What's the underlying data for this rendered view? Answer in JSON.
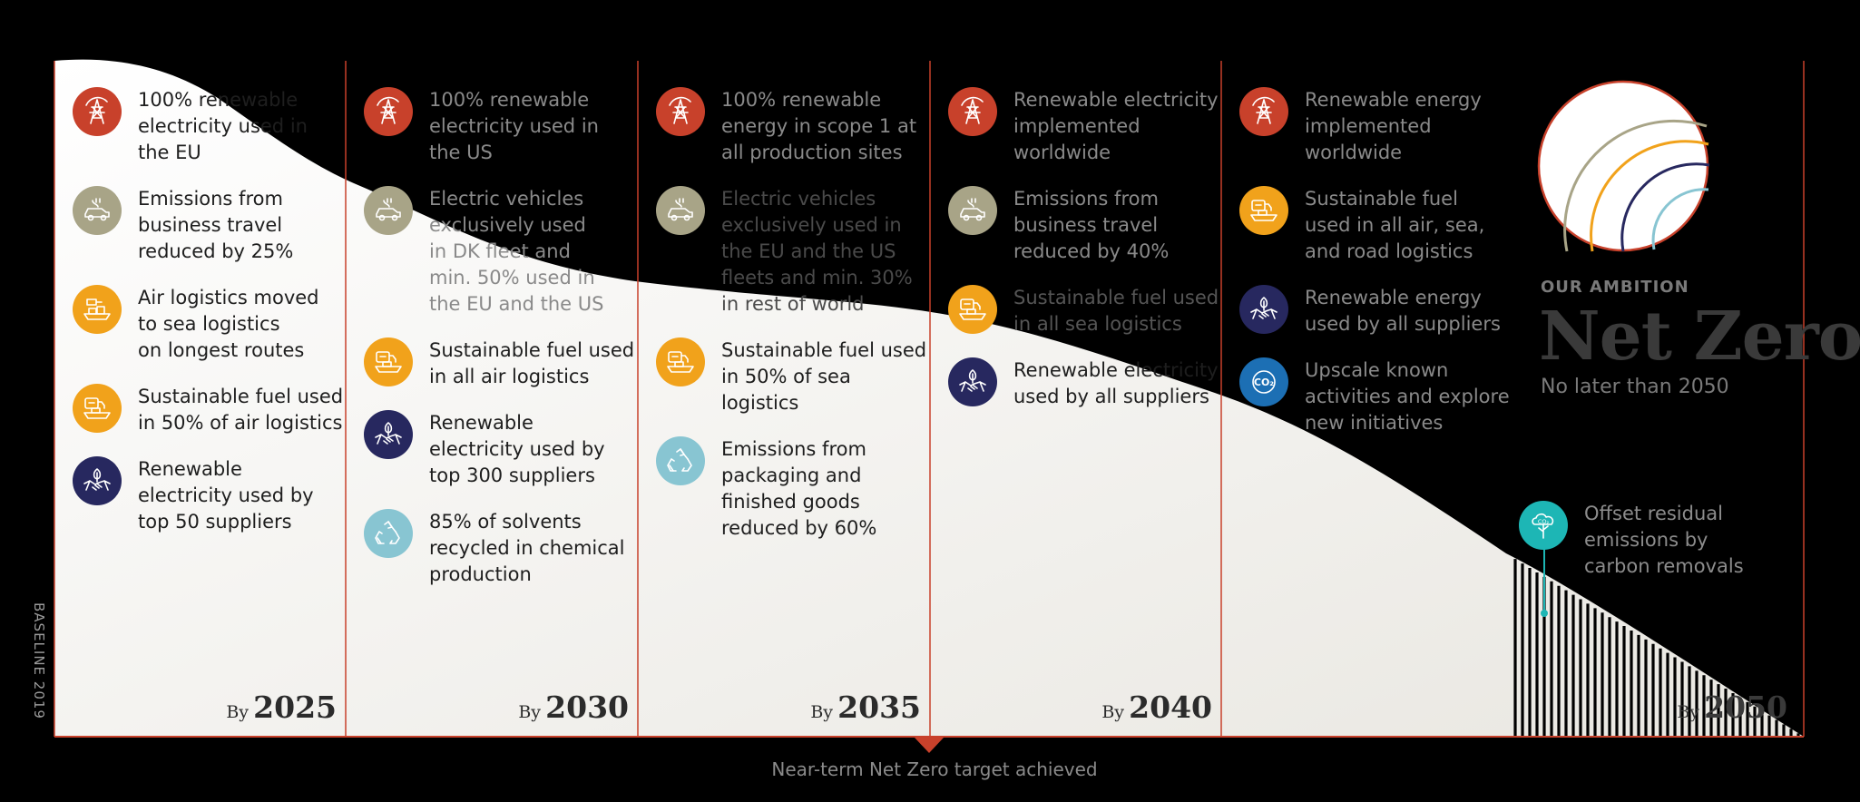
{
  "colors": {
    "red": "#c8412b",
    "khaki": "#a8a487",
    "orange": "#f1a21b",
    "navy": "#27285f",
    "lightblue": "#88c5d2",
    "blue": "#1c6fb4",
    "teal": "#1db6b5",
    "divider": "#c8412b"
  },
  "columns": [
    {
      "year_by": "By",
      "year": "2025",
      "items": [
        {
          "icon": "power-tower-icon",
          "color": "red",
          "text": "100% renewable\nelectricity used in\nthe EU"
        },
        {
          "icon": "electric-car-icon",
          "color": "khaki",
          "text": "Emissions from\nbusiness travel\nreduced by 25%"
        },
        {
          "icon": "cargo-ship-icon",
          "color": "orange",
          "text": "Air logistics moved\nto sea logistics\non longest routes"
        },
        {
          "icon": "fuel-truck-icon",
          "color": "orange",
          "text": "Sustainable fuel used\nin 50% of air logistics"
        },
        {
          "icon": "leaf-handshake-icon",
          "color": "navy",
          "text": "Renewable\nelectricity used by\ntop 50 suppliers"
        }
      ]
    },
    {
      "year_by": "By",
      "year": "2030",
      "items": [
        {
          "icon": "power-tower-icon",
          "color": "red",
          "text": "100% renewable\nelectricity used in\nthe US"
        },
        {
          "icon": "electric-car-icon",
          "color": "khaki",
          "text": "Electric vehicles\nexclusively used\nin DK fleet and\nmin. 50% used in\nthe EU and the US"
        },
        {
          "icon": "fuel-truck-icon",
          "color": "orange",
          "text": "Sustainable fuel used\nin all air logistics"
        },
        {
          "icon": "leaf-handshake-icon",
          "color": "navy",
          "text": "Renewable\nelectricity used by\ntop 300 suppliers"
        },
        {
          "icon": "recycle-icon",
          "color": "lightblue",
          "text": "85% of solvents\nrecycled in chemical\nproduction"
        }
      ]
    },
    {
      "year_by": "By",
      "year": "2035",
      "items": [
        {
          "icon": "power-tower-icon",
          "color": "red",
          "text": "100% renewable\nenergy in scope 1 at\nall production sites"
        },
        {
          "icon": "electric-car-icon",
          "color": "khaki",
          "text": "Electric vehicles\nexclusively used in\nthe EU and the US\nfleets and min. 30%\nin rest of world"
        },
        {
          "icon": "fuel-truck-icon",
          "color": "orange",
          "text": "Sustainable fuel used\nin 50% of sea logistics"
        },
        {
          "icon": "recycle-icon",
          "color": "lightblue",
          "text": "Emissions from\npackaging and\nfinished goods\nreduced by 60%"
        }
      ]
    },
    {
      "year_by": "By",
      "year": "2040",
      "items": [
        {
          "icon": "power-tower-icon",
          "color": "red",
          "text": "Renewable electricity\nimplemented\nworldwide"
        },
        {
          "icon": "electric-car-icon",
          "color": "khaki",
          "text": "Emissions from\nbusiness travel\nreduced by 40%"
        },
        {
          "icon": "fuel-truck-icon",
          "color": "orange",
          "text": "Sustainable fuel used\nin all sea logistics"
        },
        {
          "icon": "leaf-handshake-icon",
          "color": "navy",
          "text": "Renewable electricity\nused by all suppliers"
        }
      ]
    },
    {
      "year_by": "",
      "year": "",
      "items": [
        {
          "icon": "power-tower-icon",
          "color": "red",
          "text": "Renewable energy\nimplemented\nworldwide"
        },
        {
          "icon": "fuel-truck-icon",
          "color": "orange",
          "text": "Sustainable fuel\nused in all air, sea,\nand road logistics"
        },
        {
          "icon": "leaf-handshake-icon",
          "color": "navy",
          "text": "Renewable energy\nused by all suppliers"
        },
        {
          "icon": "co2-icon",
          "color": "blue",
          "text": "Upscale known\nactivities and explore\nnew initiatives"
        }
      ]
    }
  ],
  "ambition": {
    "label": "OUR AMBITION",
    "title": "Net Zero",
    "subtitle": "No later than 2050"
  },
  "offset": {
    "icon": "co2-tree-icon",
    "color": "teal",
    "text": "Offset residual\nemissions by\ncarbon removals"
  },
  "final_year": {
    "by": "By",
    "year": "2050"
  },
  "baseline": "BASELINE 2019",
  "near_term": "Near-term Net Zero target achieved"
}
